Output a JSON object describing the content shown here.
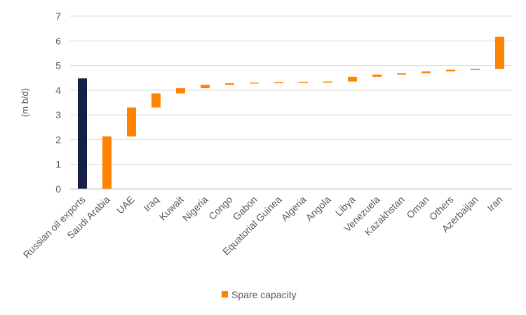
{
  "chart_data": {
    "type": "bar",
    "subtype": "waterfall",
    "title": "",
    "xlabel": "",
    "ylabel": "(m b/d)",
    "ylim": [
      0,
      7
    ],
    "yticks": [
      0,
      1,
      2,
      3,
      4,
      5,
      6,
      7
    ],
    "grid": true,
    "legend": {
      "placement": "bottom",
      "entries": [
        "Spare capacity"
      ]
    },
    "colors": {
      "base": "#142048",
      "spare": "#FF8200",
      "grid": "#D9D9D9",
      "axis": "#BFBFBF",
      "text": "#595959"
    },
    "categories": [
      "Russian oil exports",
      "Saudi Arabia",
      "UAE",
      "Iraq",
      "Kuwait",
      "Nigeria",
      "Congo",
      "Gabon",
      "Equatorial Guinea",
      "Algeria",
      "Angola",
      "Libya",
      "Venezuela",
      "Kazakhstan",
      "Oman",
      "Others",
      "Azerbaijan",
      "Iran"
    ],
    "series": [
      {
        "name": "Russian oil exports",
        "role": "base",
        "values": [
          4.48,
          null,
          null,
          null,
          null,
          null,
          null,
          null,
          null,
          null,
          null,
          null,
          null,
          null,
          null,
          null,
          null,
          null
        ]
      },
      {
        "name": "Spare capacity",
        "role": "floating",
        "ranges": [
          null,
          [
            0,
            2.13
          ],
          [
            2.13,
            3.3
          ],
          [
            3.3,
            3.87
          ],
          [
            3.87,
            4.08
          ],
          [
            4.08,
            4.22
          ],
          [
            4.22,
            4.28
          ],
          [
            4.28,
            4.31
          ],
          [
            4.31,
            4.33
          ],
          [
            4.31,
            4.34
          ],
          [
            4.34,
            4.35
          ],
          [
            4.35,
            4.54
          ],
          [
            4.54,
            4.63
          ],
          [
            4.63,
            4.69
          ],
          [
            4.69,
            4.76
          ],
          [
            4.76,
            4.83
          ],
          [
            4.83,
            4.86
          ],
          [
            4.86,
            6.16
          ]
        ]
      }
    ]
  }
}
